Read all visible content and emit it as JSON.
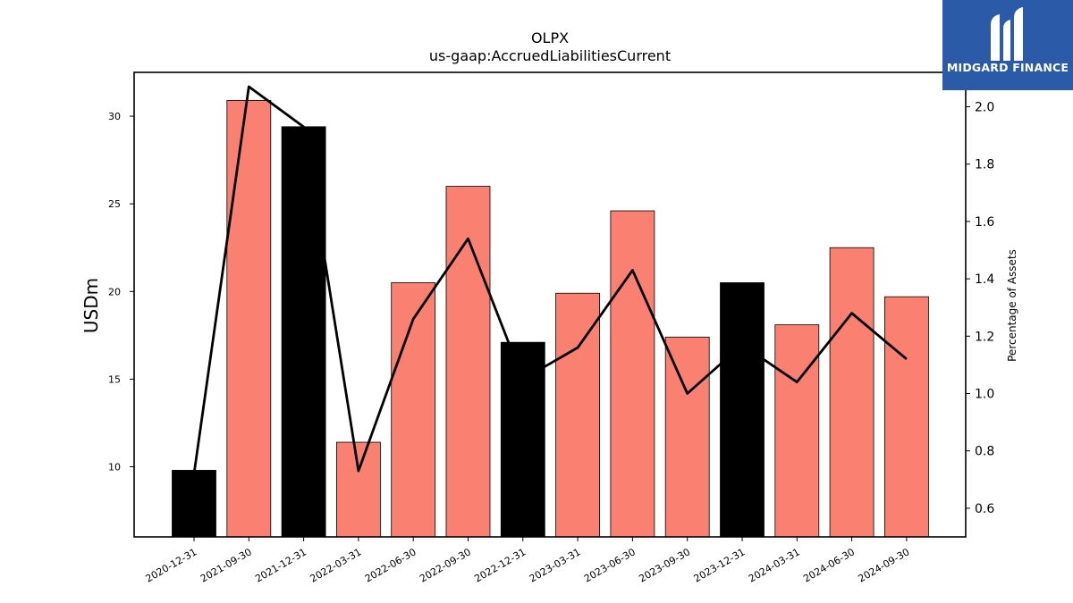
{
  "brand": {
    "name": "MIDGARD FINANCE",
    "color": "#2a5aa8"
  },
  "chart_data": {
    "type": "bar",
    "title": "OLPX",
    "subtitle": "us-gaap:AccruedLiabilitiesCurrent",
    "ylabel": "USDm",
    "y2label": "Percentage of Assets",
    "categories": [
      "2020-12-31",
      "2021-09-30",
      "2021-12-31",
      "2022-03-31",
      "2022-06-30",
      "2022-09-30",
      "2022-12-31",
      "2023-03-31",
      "2023-06-30",
      "2023-09-30",
      "2023-12-31",
      "2024-03-31",
      "2024-06-30",
      "2024-09-30"
    ],
    "series": [
      {
        "type": "bar",
        "axis": "left",
        "values": [
          9.8,
          30.9,
          29.4,
          11.4,
          20.5,
          26.0,
          17.1,
          19.9,
          24.6,
          17.4,
          20.5,
          18.1,
          22.5,
          19.7
        ]
      },
      {
        "type": "line",
        "axis": "right",
        "values": [
          0.72,
          2.07,
          1.93,
          0.73,
          1.26,
          1.54,
          1.05,
          1.16,
          1.43,
          1.0,
          1.17,
          1.04,
          1.28,
          1.12
        ]
      }
    ],
    "bar_colors": [
      "#000000",
      "#fa8072",
      "#000000",
      "#fa8072",
      "#fa8072",
      "#fa8072",
      "#000000",
      "#fa8072",
      "#fa8072",
      "#fa8072",
      "#000000",
      "#fa8072",
      "#fa8072",
      "#fa8072"
    ],
    "line_color": "#000000",
    "ylim": [
      6,
      32.5
    ],
    "y2lim": [
      0.5,
      2.12
    ],
    "yticks": [
      10,
      15,
      20,
      25,
      30
    ],
    "y2ticks": [
      "0.6",
      "0.8",
      "1.0",
      "1.2",
      "1.4",
      "1.6",
      "1.8",
      "2.0"
    ],
    "grid": false
  }
}
